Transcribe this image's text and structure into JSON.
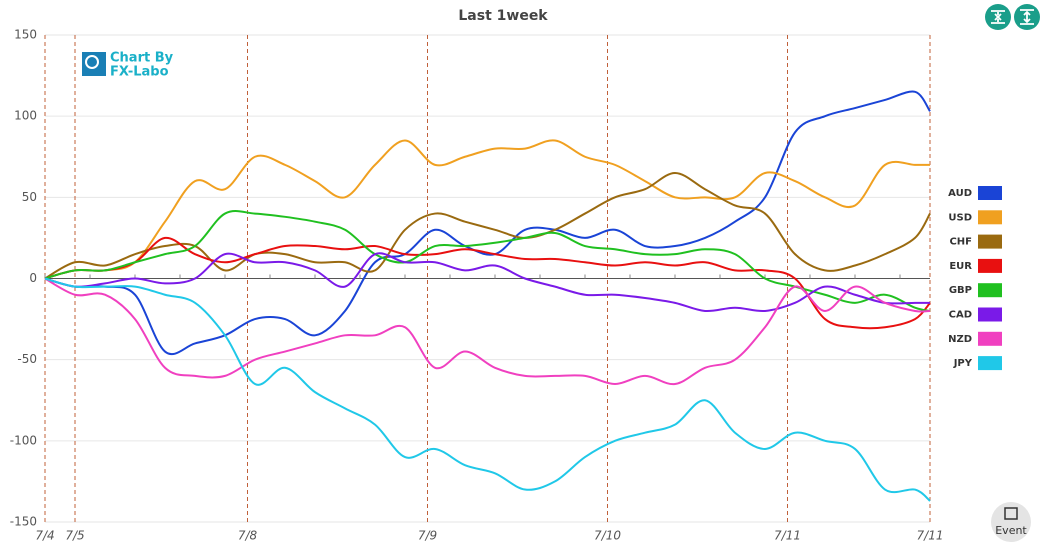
{
  "chart_data": {
    "type": "line",
    "title": "Last 1week",
    "x": [
      0,
      4,
      8,
      12,
      16,
      20,
      24,
      28,
      32,
      36,
      40,
      44,
      48,
      52,
      56,
      60,
      64,
      68,
      72,
      76,
      80,
      84,
      88,
      92,
      96,
      100,
      104,
      108,
      112,
      116,
      118
    ],
    "xlim": [
      0,
      118
    ],
    "xticks": [
      {
        "value": 0,
        "label": "7/4"
      },
      {
        "value": 4,
        "label": "7/5"
      },
      {
        "value": 27,
        "label": "7/8"
      },
      {
        "value": 51,
        "label": "7/9"
      },
      {
        "value": 75,
        "label": "7/10"
      },
      {
        "value": 99,
        "label": "7/11"
      },
      {
        "value": 118,
        "label": "7/11"
      }
    ],
    "ylim": [
      -150,
      150
    ],
    "yticks": [
      -150,
      -100,
      -50,
      0,
      50,
      100,
      150
    ],
    "grid": true,
    "legend": "right",
    "series": [
      {
        "name": "AUD",
        "color": "#1a44d6",
        "values": [
          0,
          -5,
          -5,
          -10,
          -45,
          -40,
          -35,
          -25,
          -25,
          -35,
          -20,
          10,
          15,
          30,
          20,
          15,
          30,
          30,
          25,
          30,
          20,
          20,
          25,
          35,
          50,
          90,
          100,
          105,
          110,
          115,
          103
        ]
      },
      {
        "name": "USD",
        "color": "#f0a020",
        "values": [
          0,
          5,
          5,
          10,
          35,
          60,
          55,
          75,
          70,
          60,
          50,
          70,
          85,
          70,
          75,
          80,
          80,
          85,
          75,
          70,
          60,
          50,
          50,
          50,
          65,
          60,
          50,
          45,
          70,
          70,
          70
        ]
      },
      {
        "name": "CHF",
        "color": "#9a6a10",
        "values": [
          0,
          10,
          8,
          15,
          20,
          20,
          5,
          15,
          15,
          10,
          10,
          5,
          30,
          40,
          35,
          30,
          25,
          30,
          40,
          50,
          55,
          65,
          55,
          45,
          40,
          15,
          5,
          8,
          15,
          25,
          40
        ]
      },
      {
        "name": "EUR",
        "color": "#e81010",
        "values": [
          0,
          5,
          5,
          10,
          25,
          15,
          10,
          15,
          20,
          20,
          18,
          20,
          15,
          15,
          18,
          15,
          12,
          12,
          10,
          8,
          10,
          8,
          10,
          5,
          5,
          0,
          -25,
          -30,
          -30,
          -25,
          -15
        ]
      },
      {
        "name": "GBP",
        "color": "#20c020",
        "values": [
          0,
          5,
          5,
          10,
          15,
          20,
          40,
          40,
          38,
          35,
          30,
          15,
          10,
          20,
          20,
          22,
          25,
          28,
          20,
          18,
          15,
          15,
          18,
          15,
          0,
          -5,
          -10,
          -15,
          -10,
          -18,
          -20
        ]
      },
      {
        "name": "CAD",
        "color": "#7a1ae8",
        "values": [
          0,
          -5,
          -3,
          0,
          -3,
          0,
          15,
          10,
          10,
          5,
          -5,
          15,
          10,
          10,
          5,
          8,
          0,
          -5,
          -10,
          -10,
          -12,
          -15,
          -20,
          -18,
          -20,
          -15,
          -5,
          -10,
          -15,
          -15,
          -15
        ]
      },
      {
        "name": "NZD",
        "color": "#f040c0",
        "values": [
          0,
          -10,
          -10,
          -25,
          -55,
          -60,
          -60,
          -50,
          -45,
          -40,
          -35,
          -35,
          -30,
          -55,
          -45,
          -55,
          -60,
          -60,
          -60,
          -65,
          -60,
          -65,
          -55,
          -50,
          -30,
          -5,
          -20,
          -5,
          -15,
          -20,
          -20
        ]
      },
      {
        "name": "JPY",
        "color": "#20c8e8",
        "values": [
          0,
          -5,
          -5,
          -5,
          -10,
          -15,
          -35,
          -65,
          -55,
          -70,
          -80,
          -90,
          -110,
          -105,
          -115,
          -120,
          -130,
          -125,
          -110,
          -100,
          -95,
          -90,
          -75,
          -95,
          -105,
          -95,
          -100,
          -105,
          -130,
          -130,
          -137
        ]
      }
    ]
  },
  "logo_text": [
    "Chart By",
    "FX-Labo"
  ],
  "event_button": "Event"
}
